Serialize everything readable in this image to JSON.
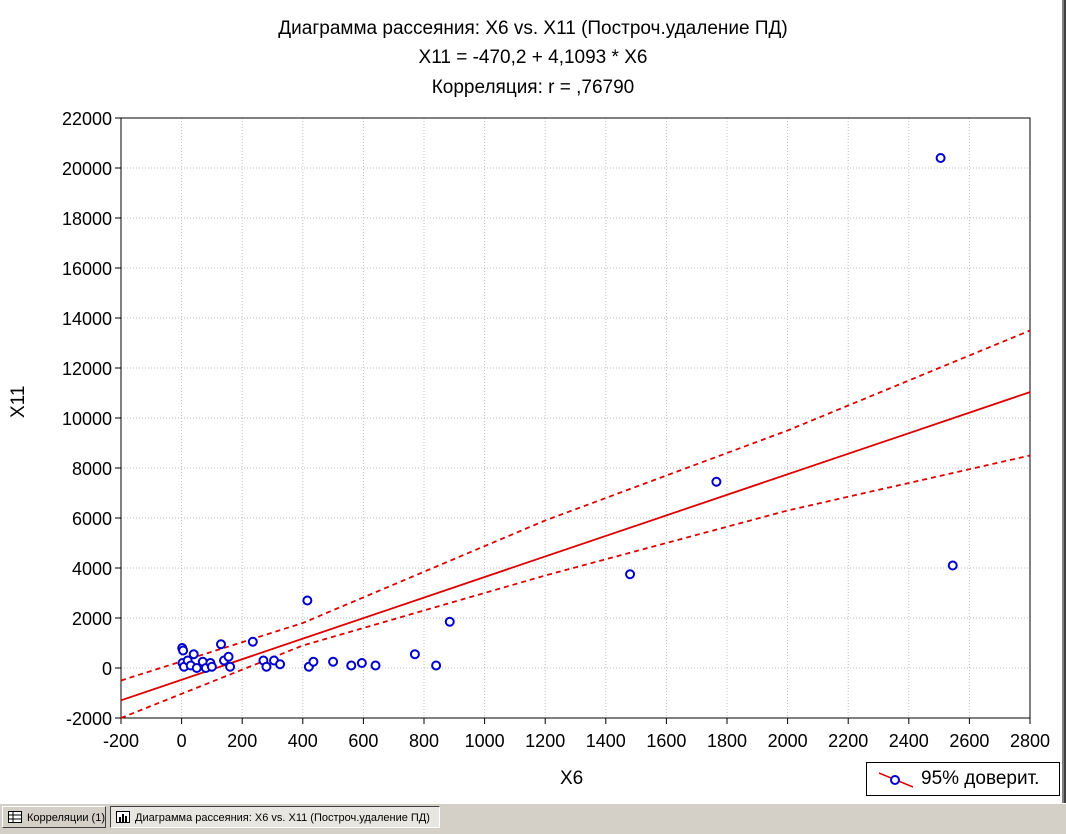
{
  "chart_data": {
    "type": "scatter",
    "title": "Диаграмма рассеяния: X6 vs. X11 (Построч.удаление ПД)",
    "subtitle_equation": "X11 = -470,2 + 4,1093 * X6",
    "subtitle_correlation": "Корреляция: r =  ,76790",
    "xlabel": "X6",
    "ylabel": "X11",
    "xlim": [
      -200,
      2800
    ],
    "ylim": [
      -2000,
      22000
    ],
    "x_ticks": [
      "-200",
      "0",
      "200",
      "400",
      "600",
      "800",
      "1000",
      "1200",
      "1400",
      "1600",
      "1800",
      "2000",
      "2200",
      "2400",
      "2600",
      "2800"
    ],
    "y_ticks": [
      "-2000",
      "0",
      "2000",
      "4000",
      "6000",
      "8000",
      "10000",
      "12000",
      "14000",
      "16000",
      "18000",
      "20000",
      "22000"
    ],
    "grid": true,
    "legend_position": "bottom-right",
    "legend_label": "95% доверит.",
    "regression": {
      "intercept": -470.2,
      "slope": 4.1093
    },
    "confidence_band": {
      "upper": [
        [
          -200,
          -500
        ],
        [
          400,
          1800
        ],
        [
          1200,
          5900
        ],
        [
          2000,
          9500
        ],
        [
          2800,
          13500
        ]
      ],
      "lower": [
        [
          -200,
          -2000
        ],
        [
          400,
          900
        ],
        [
          1200,
          3700
        ],
        [
          2000,
          6300
        ],
        [
          2800,
          8500
        ]
      ]
    },
    "points": [
      {
        "x": 2,
        "y": 800
      },
      {
        "x": 5,
        "y": 700
      },
      {
        "x": 3,
        "y": 200
      },
      {
        "x": 8,
        "y": 50
      },
      {
        "x": 20,
        "y": 300
      },
      {
        "x": 30,
        "y": 100
      },
      {
        "x": 40,
        "y": 550
      },
      {
        "x": 50,
        "y": 0
      },
      {
        "x": 70,
        "y": 250
      },
      {
        "x": 80,
        "y": 0
      },
      {
        "x": 95,
        "y": 200
      },
      {
        "x": 100,
        "y": 50
      },
      {
        "x": 130,
        "y": 950
      },
      {
        "x": 140,
        "y": 300
      },
      {
        "x": 155,
        "y": 450
      },
      {
        "x": 160,
        "y": 50
      },
      {
        "x": 235,
        "y": 1050
      },
      {
        "x": 270,
        "y": 300
      },
      {
        "x": 280,
        "y": 50
      },
      {
        "x": 305,
        "y": 300
      },
      {
        "x": 325,
        "y": 150
      },
      {
        "x": 415,
        "y": 2700
      },
      {
        "x": 420,
        "y": 50
      },
      {
        "x": 435,
        "y": 250
      },
      {
        "x": 500,
        "y": 250
      },
      {
        "x": 560,
        "y": 100
      },
      {
        "x": 595,
        "y": 200
      },
      {
        "x": 640,
        "y": 100
      },
      {
        "x": 770,
        "y": 550
      },
      {
        "x": 840,
        "y": 100
      },
      {
        "x": 885,
        "y": 1850
      },
      {
        "x": 1480,
        "y": 3750
      },
      {
        "x": 1765,
        "y": 7450
      },
      {
        "x": 2505,
        "y": 20400
      },
      {
        "x": 2545,
        "y": 4100
      }
    ],
    "colors": {
      "points": "#0000cc",
      "line": "#dd0000",
      "grid": "#bfbfbf"
    }
  },
  "taskbar": {
    "item1_label": "Корреляции (1)",
    "item2_label": "Диаграмма рассеяния: X6 vs. X11 (Построч.удаление ПД)"
  }
}
